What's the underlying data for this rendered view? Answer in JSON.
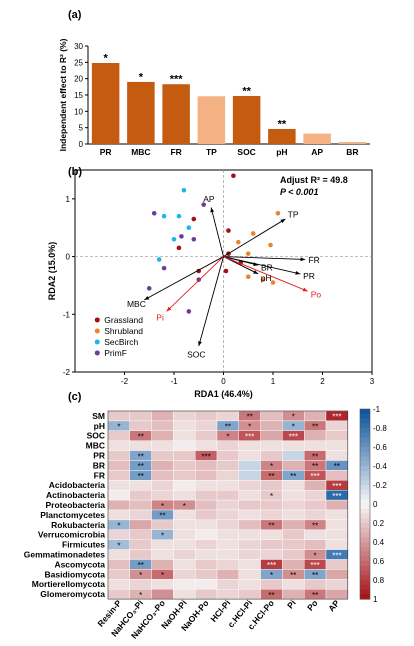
{
  "chart_data": [
    {
      "panel": "(a)",
      "type": "bar",
      "ylabel": "Independent effect to R² (%)",
      "ylim": [
        0,
        30
      ],
      "yticks": [
        0,
        5,
        10,
        15,
        20,
        25,
        30
      ],
      "categories": [
        "PR",
        "MBC",
        "FR",
        "TP",
        "SOC",
        "pH",
        "AP",
        "BR"
      ],
      "values": [
        24.8,
        19.0,
        18.3,
        14.6,
        14.7,
        4.6,
        3.2,
        0.6
      ],
      "significance": [
        "*",
        "*",
        "***",
        "",
        "**",
        "**",
        "",
        ""
      ],
      "colors": [
        "#c55a11",
        "#c55a11",
        "#c55a11",
        "#f4b183",
        "#c55a11",
        "#c55a11",
        "#f4b183",
        "#f4b183"
      ]
    },
    {
      "panel": "(b)",
      "type": "scatter",
      "xlabel": "RDA1 (46.4%)",
      "ylabel": "RDA2 (15.0%)",
      "xlim": [
        -3,
        3
      ],
      "ylim": [
        -2,
        1.5
      ],
      "xticks": [
        -2,
        -1,
        0,
        1,
        2,
        3
      ],
      "yticks": [
        -2,
        -1,
        0,
        1
      ],
      "annotation_line1": "Adjust R² = 49.8",
      "annotation_line2": "P < 0.001",
      "legend_position": "bottom-left",
      "series": [
        {
          "name": "Grassland",
          "color": "#a50f15",
          "points": [
            [
              0.2,
              1.4
            ],
            [
              -0.9,
              0.15
            ],
            [
              0.1,
              0.45
            ],
            [
              0.35,
              -0.1
            ],
            [
              -0.5,
              -0.25
            ],
            [
              0.1,
              0.05
            ],
            [
              0.05,
              -0.25
            ],
            [
              -0.6,
              0.65
            ]
          ]
        },
        {
          "name": "Shrubland",
          "color": "#e6862f",
          "points": [
            [
              1.1,
              0.75
            ],
            [
              0.95,
              0.2
            ],
            [
              0.6,
              0.4
            ],
            [
              0.5,
              -0.35
            ],
            [
              0.8,
              -0.4
            ],
            [
              0.3,
              0.25
            ],
            [
              1.0,
              -0.45
            ],
            [
              0.5,
              0.05
            ]
          ]
        },
        {
          "name": "SecBirch",
          "color": "#1fb5e6",
          "points": [
            [
              -1.2,
              0.7
            ],
            [
              -0.9,
              0.7
            ],
            [
              -0.8,
              1.15
            ],
            [
              -1.0,
              0.3
            ],
            [
              -1.3,
              -0.05
            ],
            [
              -0.7,
              0.5
            ]
          ]
        },
        {
          "name": "PrimF",
          "color": "#6a3d9a",
          "points": [
            [
              -1.4,
              0.75
            ],
            [
              -0.4,
              0.9
            ],
            [
              -0.6,
              0.3
            ],
            [
              -1.2,
              -0.2
            ],
            [
              -0.5,
              -0.4
            ],
            [
              -0.7,
              -0.95
            ],
            [
              -1.5,
              -0.55
            ],
            [
              -0.85,
              0.35
            ]
          ]
        }
      ],
      "vectors": [
        {
          "label": "AP",
          "x": -0.25,
          "y": 0.85,
          "color": "#000000"
        },
        {
          "label": "TP",
          "x": 1.25,
          "y": 0.65,
          "color": "#000000"
        },
        {
          "label": "FR",
          "x": 1.65,
          "y": -0.05,
          "color": "#000000"
        },
        {
          "label": "BR",
          "x": 0.7,
          "y": -0.15,
          "color": "#000000"
        },
        {
          "label": "PR",
          "x": 1.55,
          "y": -0.3,
          "color": "#000000"
        },
        {
          "label": "pH",
          "x": 0.7,
          "y": -0.3,
          "color": "#000000"
        },
        {
          "label": "Po",
          "x": 1.7,
          "y": -0.6,
          "color": "#e31a1c"
        },
        {
          "label": "MBC",
          "x": -1.6,
          "y": -0.75,
          "color": "#000000"
        },
        {
          "label": "Pi",
          "x": -1.15,
          "y": -0.95,
          "color": "#e31a1c"
        },
        {
          "label": "SOC",
          "x": -0.5,
          "y": -1.55,
          "color": "#000000"
        }
      ]
    },
    {
      "panel": "(c)",
      "type": "heatmap",
      "rows": [
        "SM",
        "pH",
        "SOC",
        "MBC",
        "PR",
        "BR",
        "FR",
        "Acidobacteria",
        "Actinobacteria",
        "Proteobacteria",
        "Planctomycetes",
        "Rokubacteria",
        "Verrucomicrobia",
        "Firmicutes",
        "Gemmatimonadetes",
        "Ascomycota",
        "Basidiomycota",
        "Mortierellomycota",
        "Glomeromycota"
      ],
      "bold_rows": [
        "SM",
        "pH",
        "SOC",
        "MBC",
        "PR",
        "BR",
        "FR"
      ],
      "columns": [
        "Resin-P",
        "NaHCO₃-Pi",
        "NaHCO₃-Po",
        "NaOH-Pi",
        "NaOH-Po",
        "HCl-Pi",
        "c.HCl-Pi",
        "c.HCl-Po",
        "Pi",
        "Po",
        "AP"
      ],
      "colorbar_ticks": [
        "-1",
        "-0.8",
        "-0.6",
        "-0.4",
        "-0.2",
        "0",
        "0.2",
        "0.4",
        "0.6",
        "0.8",
        "1"
      ],
      "colorbar_range": [
        -1,
        1
      ],
      "values": [
        [
          0.2,
          0.2,
          0.3,
          0.15,
          0.2,
          0.15,
          0.55,
          0.25,
          0.45,
          0.3,
          0.9
        ],
        [
          -0.4,
          0.2,
          0.25,
          0.1,
          0.15,
          -0.5,
          0.45,
          0.3,
          -0.4,
          0.55,
          0.15
        ],
        [
          0.2,
          0.55,
          0.3,
          0.1,
          0.2,
          0.5,
          0.7,
          0.35,
          0.75,
          0.3,
          0.2
        ],
        [
          0.1,
          0.1,
          0.1,
          0.05,
          0.1,
          0.15,
          0.1,
          0.1,
          0.1,
          0.1,
          0.1
        ],
        [
          0.2,
          -0.5,
          0.2,
          0.2,
          0.65,
          0.2,
          0.1,
          0.2,
          -0.2,
          0.6,
          0.1
        ],
        [
          0.25,
          -0.55,
          0.3,
          0.2,
          0.25,
          0.2,
          -0.2,
          0.5,
          0.3,
          0.55,
          -0.6
        ],
        [
          0.2,
          -0.55,
          0.25,
          0.2,
          0.25,
          0.15,
          -0.2,
          0.6,
          -0.5,
          0.7,
          0.25
        ],
        [
          0.1,
          0.1,
          0.15,
          0.05,
          0.1,
          0.1,
          0.15,
          0.2,
          0.1,
          0.3,
          0.8
        ],
        [
          0.05,
          0.2,
          0.15,
          0.1,
          0.2,
          0.2,
          0.1,
          0.2,
          0.1,
          0.15,
          -0.85
        ],
        [
          0.3,
          0.25,
          0.5,
          0.45,
          0.25,
          0.15,
          0.2,
          0.2,
          0.15,
          0.2,
          0.3
        ],
        [
          0.1,
          0.15,
          -0.55,
          0.1,
          0.2,
          0.15,
          0.1,
          0.15,
          0.1,
          0.15,
          0.1
        ],
        [
          -0.4,
          0.35,
          0.2,
          0.1,
          0.1,
          0.15,
          0.25,
          0.55,
          0.3,
          0.5,
          0.1
        ],
        [
          0.15,
          0.2,
          -0.4,
          0.1,
          0.05,
          0.1,
          0.1,
          0.1,
          0.2,
          0.1,
          0.1
        ],
        [
          -0.35,
          0.2,
          0.1,
          0.1,
          0.15,
          0.1,
          0.15,
          0.2,
          0.2,
          0.25,
          0.1
        ],
        [
          0.1,
          0.2,
          0.1,
          0.15,
          0.1,
          0.1,
          0.15,
          0.15,
          0.2,
          0.45,
          -0.75
        ],
        [
          0.25,
          -0.55,
          0.3,
          0.1,
          0.2,
          0.15,
          0.1,
          0.8,
          0.3,
          0.75,
          0.2
        ],
        [
          0.2,
          0.45,
          0.6,
          0.15,
          0.2,
          0.3,
          0.1,
          -0.5,
          0.45,
          -0.5,
          0.35
        ],
        [
          0.1,
          0.15,
          0.1,
          0.05,
          0.05,
          0.15,
          0.1,
          0.2,
          0.1,
          0.2,
          0.15
        ],
        [
          0.2,
          0.3,
          0.45,
          0.1,
          0.2,
          0.15,
          0.2,
          0.6,
          0.3,
          0.55,
          0.35
        ]
      ],
      "stars": [
        [
          "",
          "",
          "",
          "",
          "",
          "",
          "**",
          "",
          "*",
          "",
          "***"
        ],
        [
          "*",
          "",
          "",
          "",
          "",
          "**",
          "*",
          "",
          "*",
          "**",
          ""
        ],
        [
          "",
          "**",
          "",
          "",
          "",
          "*",
          "***",
          "",
          "***",
          "",
          ""
        ],
        [
          "",
          "",
          "",
          "",
          "",
          "",
          "",
          "",
          "",
          "",
          ""
        ],
        [
          "",
          "**",
          "",
          "",
          "***",
          "",
          "",
          "",
          "",
          "**",
          ""
        ],
        [
          "",
          "**",
          "",
          "",
          "",
          "",
          "",
          "*",
          "",
          "**",
          "**"
        ],
        [
          "",
          "**",
          "",
          "",
          "",
          "",
          "",
          "**",
          "**",
          "***",
          ""
        ],
        [
          "",
          "",
          "",
          "",
          "",
          "",
          "",
          "",
          "",
          "",
          "***"
        ],
        [
          "",
          "",
          "",
          "",
          "",
          "",
          "",
          "*",
          "",
          "",
          "***"
        ],
        [
          "",
          "",
          "*",
          "*",
          "",
          "",
          "",
          "",
          "",
          "",
          ""
        ],
        [
          "",
          "",
          "**",
          "",
          "",
          "",
          "",
          "",
          "",
          "",
          ""
        ],
        [
          "*",
          "",
          "",
          "",
          "",
          "",
          "",
          "**",
          "",
          "**",
          ""
        ],
        [
          "",
          "",
          "*",
          "",
          "",
          "",
          "",
          "",
          "",
          "",
          ""
        ],
        [
          "*",
          "",
          "",
          "",
          "",
          "",
          "",
          "",
          "",
          "",
          ""
        ],
        [
          "",
          "",
          "",
          "",
          "",
          "",
          "",
          "",
          "",
          "*",
          "***"
        ],
        [
          "",
          "**",
          "",
          "",
          "",
          "",
          "",
          "***",
          "",
          "***",
          ""
        ],
        [
          "",
          "*",
          "*",
          "",
          "",
          "",
          "",
          "*",
          "**",
          "**",
          ""
        ],
        [
          "",
          "",
          "",
          "",
          "",
          "",
          "",
          "",
          "",
          "",
          ""
        ],
        [
          "",
          "*",
          "",
          "",
          "",
          "",
          "",
          "**",
          "",
          "**",
          ""
        ]
      ]
    }
  ]
}
